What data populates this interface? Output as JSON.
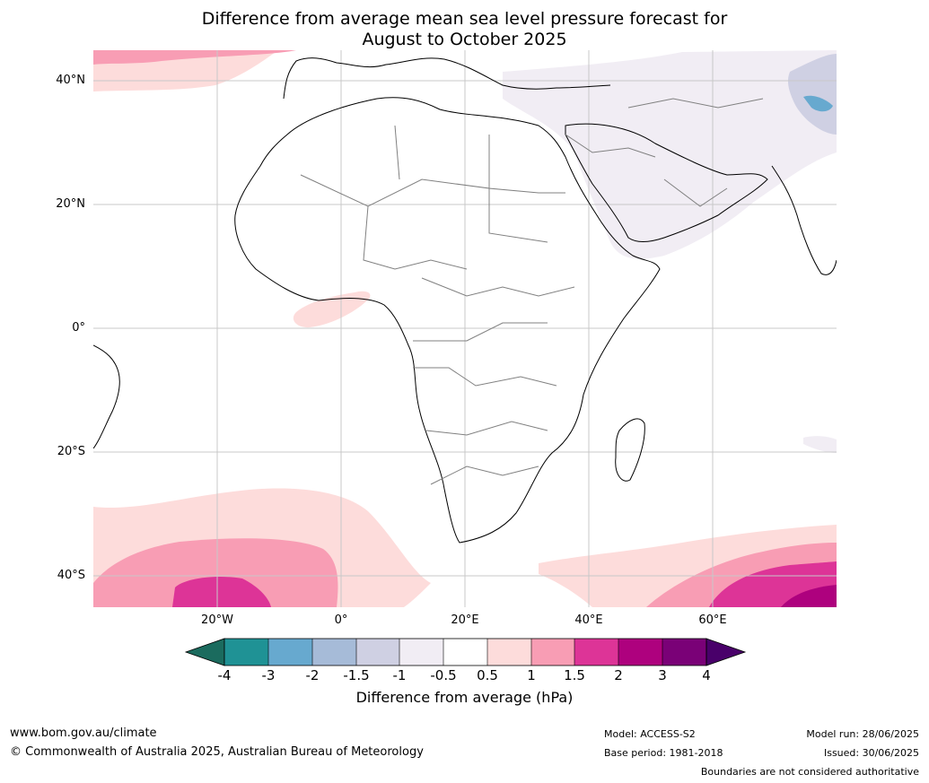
{
  "title": {
    "line1": "Difference from average mean sea level pressure forecast for",
    "line2": "August to October 2025"
  },
  "map": {
    "lat_labels": [
      "40°N",
      "20°N",
      "0°",
      "20°S",
      "40°S"
    ],
    "lon_labels": [
      "20°W",
      "0°",
      "20°E",
      "40°E",
      "60°E"
    ],
    "extent": {
      "lon": [
        -40,
        80
      ],
      "lat": [
        -45,
        45
      ]
    },
    "colors": {
      "land_fill": "#ffffff",
      "coast": "#000000",
      "borders": "#808080",
      "grid": "#c8c8c8"
    }
  },
  "colorbar": {
    "ticks": [
      "-4",
      "-3",
      "-2",
      "-1.5",
      "-1",
      "-0.5",
      "0.5",
      "1",
      "1.5",
      "2",
      "3",
      "4"
    ],
    "colors": [
      "#1b6b5e",
      "#1f9295",
      "#67a9cf",
      "#a6bbd8",
      "#cfd0e3",
      "#f1edf4",
      "#ffffff",
      "#fddcdb",
      "#f89db4",
      "#dd3497",
      "#ae017e",
      "#7a0177",
      "#49006a"
    ],
    "label": "Difference from average (hPa)"
  },
  "footer": {
    "url": "www.bom.gov.au/climate",
    "copyright": "© Commonwealth of Australia 2025, Australian Bureau of Meteorology",
    "model": "Model: ACCESS-S2",
    "base_period": "Base period: 1981-2018",
    "model_run": "Model run: 28/06/2025",
    "issued": "Issued: 30/06/2025",
    "disclaimer": "Boundaries are not considered authoritative"
  }
}
